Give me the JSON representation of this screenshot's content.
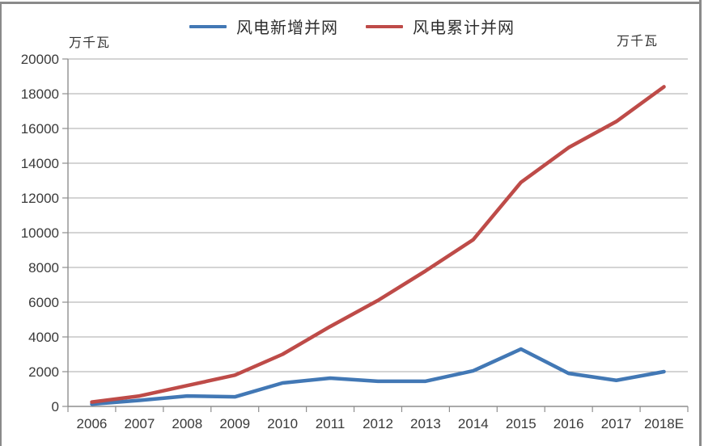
{
  "window": {
    "border_color": "#8a8a8a"
  },
  "chart_data": {
    "type": "line",
    "title": "",
    "unit_left": "万千瓦",
    "unit_right": "万千瓦",
    "categories": [
      "2006",
      "2007",
      "2008",
      "2009",
      "2010",
      "2011",
      "2012",
      "2013",
      "2014",
      "2015",
      "2016",
      "2017",
      "2018E"
    ],
    "series": [
      {
        "name": "风电新增并网",
        "color": "#4278b5",
        "values": [
          130,
          350,
          600,
          550,
          1350,
          1630,
          1450,
          1450,
          2050,
          3300,
          1900,
          1500,
          2000
        ]
      },
      {
        "name": "风电累计并网",
        "color": "#be4b48",
        "values": [
          250,
          600,
          1200,
          1800,
          3000,
          4600,
          6100,
          7800,
          9600,
          12900,
          14900,
          16400,
          18400
        ]
      }
    ],
    "ylim": [
      0,
      20000
    ],
    "ytick_step": 2000,
    "grid": true,
    "legend_position": "top",
    "gridline_color": "#a8a8a8",
    "axis_color": "#8e8e8e",
    "tick_label_color": "#3a3a3a"
  }
}
